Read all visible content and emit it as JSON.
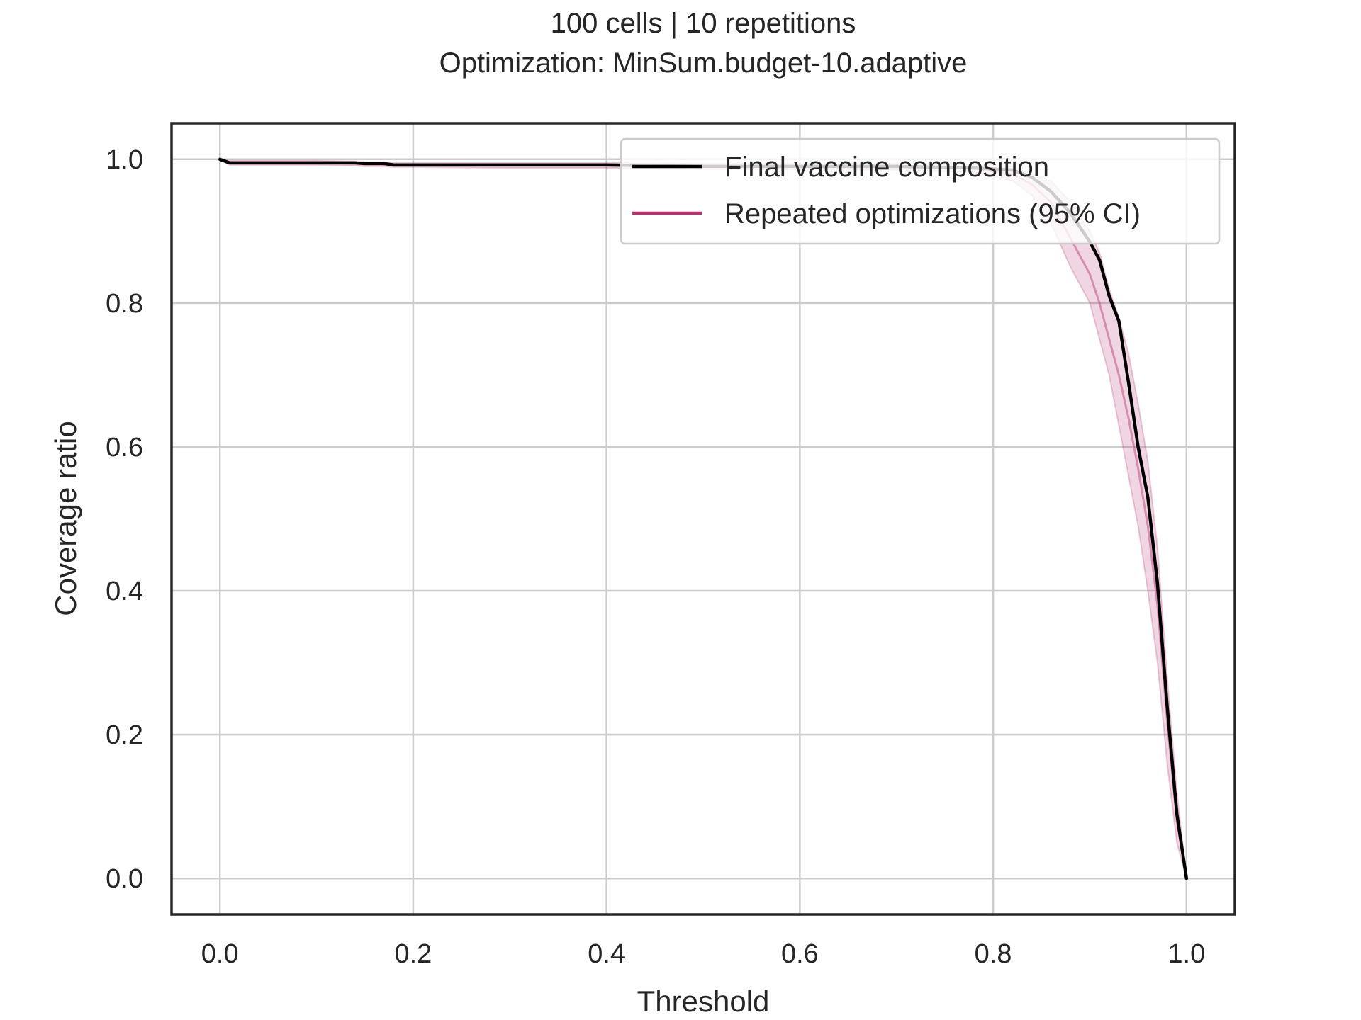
{
  "chart_data": {
    "type": "line",
    "title_line1": "100 cells | 10 repetitions",
    "title_line2": "Optimization: MinSum.budget-10.adaptive",
    "xlabel": "Threshold",
    "ylabel": "Coverage ratio",
    "xlim": [
      -0.05,
      1.05
    ],
    "ylim": [
      -0.05,
      1.05
    ],
    "x_ticks": [
      "0.0",
      "0.2",
      "0.4",
      "0.6",
      "0.8",
      "1.0"
    ],
    "y_ticks": [
      "0.0",
      "0.2",
      "0.4",
      "0.6",
      "0.8",
      "1.0"
    ],
    "grid": true,
    "legend_position": "upper right",
    "legend": [
      "Final vaccine composition",
      "Repeated optimizations (95% CI)"
    ],
    "colors": {
      "final_line": "#000000",
      "ci_line": "#b5336f",
      "ci_fill": "#b5336f",
      "grid": "#cccccc",
      "spine": "#262626"
    },
    "series": [
      {
        "name": "Final vaccine composition",
        "x": [
          0.0,
          0.01,
          0.05,
          0.1,
          0.14,
          0.15,
          0.17,
          0.18,
          0.2,
          0.3,
          0.4,
          0.5,
          0.6,
          0.7,
          0.78,
          0.82,
          0.84,
          0.86,
          0.88,
          0.9,
          0.91,
          0.92,
          0.93,
          0.94,
          0.95,
          0.96,
          0.97,
          0.98,
          0.99,
          1.0
        ],
        "y": [
          1.0,
          0.995,
          0.995,
          0.995,
          0.995,
          0.994,
          0.994,
          0.992,
          0.992,
          0.992,
          0.992,
          0.99,
          0.99,
          0.99,
          0.988,
          0.985,
          0.975,
          0.955,
          0.925,
          0.885,
          0.86,
          0.81,
          0.775,
          0.69,
          0.6,
          0.53,
          0.41,
          0.24,
          0.09,
          0.0
        ]
      },
      {
        "name": "Repeated optimizations (95% CI)",
        "x": [
          0.0,
          0.01,
          0.05,
          0.1,
          0.14,
          0.15,
          0.17,
          0.18,
          0.2,
          0.3,
          0.4,
          0.5,
          0.6,
          0.7,
          0.78,
          0.82,
          0.84,
          0.86,
          0.88,
          0.9,
          0.91,
          0.92,
          0.93,
          0.94,
          0.95,
          0.96,
          0.97,
          0.98,
          0.99,
          1.0
        ],
        "mean": [
          1.0,
          0.995,
          0.995,
          0.995,
          0.994,
          0.993,
          0.993,
          0.992,
          0.992,
          0.992,
          0.992,
          0.99,
          0.99,
          0.99,
          0.987,
          0.98,
          0.965,
          0.94,
          0.89,
          0.84,
          0.8,
          0.75,
          0.7,
          0.64,
          0.57,
          0.49,
          0.38,
          0.22,
          0.08,
          0.0
        ],
        "lower": [
          1.0,
          0.992,
          0.992,
          0.992,
          0.991,
          0.99,
          0.99,
          0.989,
          0.989,
          0.988,
          0.988,
          0.986,
          0.986,
          0.985,
          0.982,
          0.97,
          0.95,
          0.91,
          0.85,
          0.8,
          0.75,
          0.7,
          0.63,
          0.56,
          0.49,
          0.4,
          0.3,
          0.16,
          0.05,
          0.0
        ],
        "upper": [
          1.0,
          0.998,
          0.998,
          0.998,
          0.997,
          0.996,
          0.996,
          0.995,
          0.995,
          0.995,
          0.995,
          0.994,
          0.994,
          0.994,
          0.993,
          0.99,
          0.98,
          0.97,
          0.94,
          0.9,
          0.87,
          0.82,
          0.78,
          0.73,
          0.66,
          0.58,
          0.46,
          0.28,
          0.12,
          0.0
        ]
      }
    ]
  }
}
